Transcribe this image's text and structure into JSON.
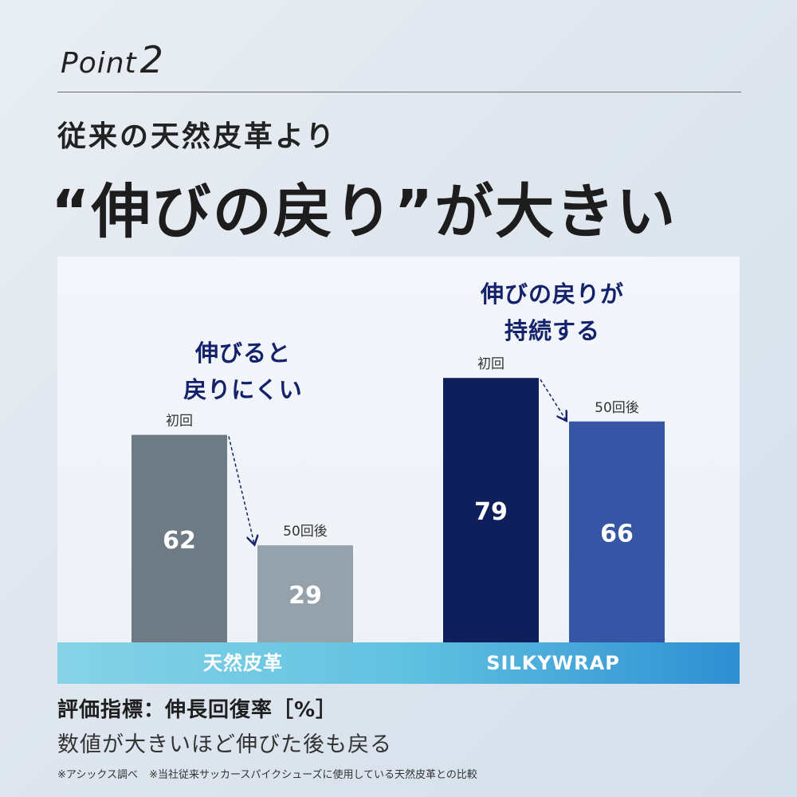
{
  "header": {
    "point_word": "Point",
    "point_number": "2",
    "subtitle": "従来の天然皮革より",
    "title": "“伸びの戻り”が大きい"
  },
  "colors": {
    "leather_first": "#6e7b85",
    "leather_after": "#96a2ab",
    "silky_first": "#0e1f5c",
    "silky_after": "#3656a5",
    "callout_text": "#13226b",
    "arrow": "#13226b"
  },
  "chart_data": {
    "type": "bar",
    "ylim": [
      0,
      100
    ],
    "groups": [
      {
        "name": "天然皮革",
        "callout": [
          "伸びると",
          "戻りにくい"
        ],
        "bars": [
          {
            "label": "初回",
            "value": 62
          },
          {
            "label": "50回後",
            "value": 29
          }
        ]
      },
      {
        "name": "SILKYWRAP",
        "callout": [
          "伸びの戻りが",
          "持続する"
        ],
        "bars": [
          {
            "label": "初回",
            "value": 79
          },
          {
            "label": "50回後",
            "value": 66
          }
        ]
      }
    ]
  },
  "footer": {
    "metric": "評価指標：伸長回復率［%］",
    "description": "数値が大きいほど伸びた後も戻る",
    "notes": "※アシックス調べ ※当社従来サッカースパイクシューズに使用している天然皮革との比較"
  }
}
